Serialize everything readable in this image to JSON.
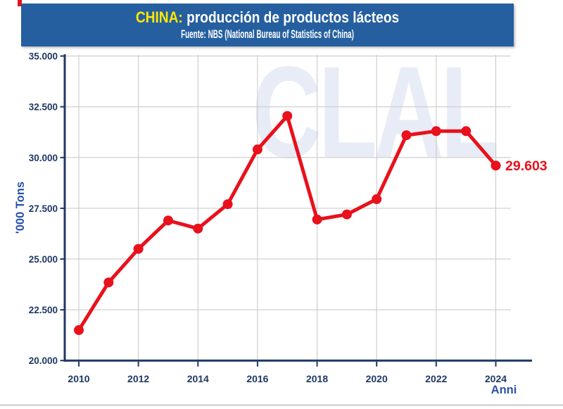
{
  "header": {
    "title_highlight": "CHINA:",
    "title_rest": " producción de productos lácteos",
    "subtitle": "Fuente: NBS (National Bureau of Statistics of China)"
  },
  "watermark": {
    "text": "CLAL"
  },
  "colors": {
    "header_bg": "#255fa0",
    "title_highlight": "#ffe800",
    "series_red": "#e8111c",
    "axis_navy": "#1f3864",
    "tick_label_navy": "#1f3864",
    "axis_title_blue": "#2a52a8",
    "gridline_gray": "#c6c6c6",
    "watermark_blue": "#e8ecf6"
  },
  "chart_data": {
    "type": "line",
    "title": "CHINA: producción de productos lácteos",
    "source": "Fuente: NBS (National Bureau of Statistics of China)",
    "xlabel": "Anni",
    "ylabel": "'000 Tons",
    "x": [
      2010,
      2011,
      2012,
      2013,
      2014,
      2015,
      2016,
      2017,
      2018,
      2019,
      2020,
      2021,
      2022,
      2023,
      2024
    ],
    "values": [
      21500,
      23850,
      25500,
      26900,
      26500,
      27700,
      30400,
      32050,
      26950,
      27200,
      27950,
      31100,
      31300,
      31300,
      29603
    ],
    "series_name": "Producción de productos lácteos ('000 tons)",
    "ylim": [
      20000,
      35000
    ],
    "y_tick_step": 2500,
    "y_tick_labels": [
      "35.000",
      "32.500",
      "30.000",
      "27.500",
      "25.000",
      "22.500",
      "20.000"
    ],
    "x_tick_labels": [
      "2010",
      "2012",
      "2014",
      "2016",
      "2018",
      "2020",
      "2022",
      "2024"
    ],
    "x_tick_years": [
      2010,
      2012,
      2014,
      2016,
      2018,
      2020,
      2022,
      2024
    ],
    "end_label": "29.603",
    "grid": true,
    "legend": "none"
  }
}
